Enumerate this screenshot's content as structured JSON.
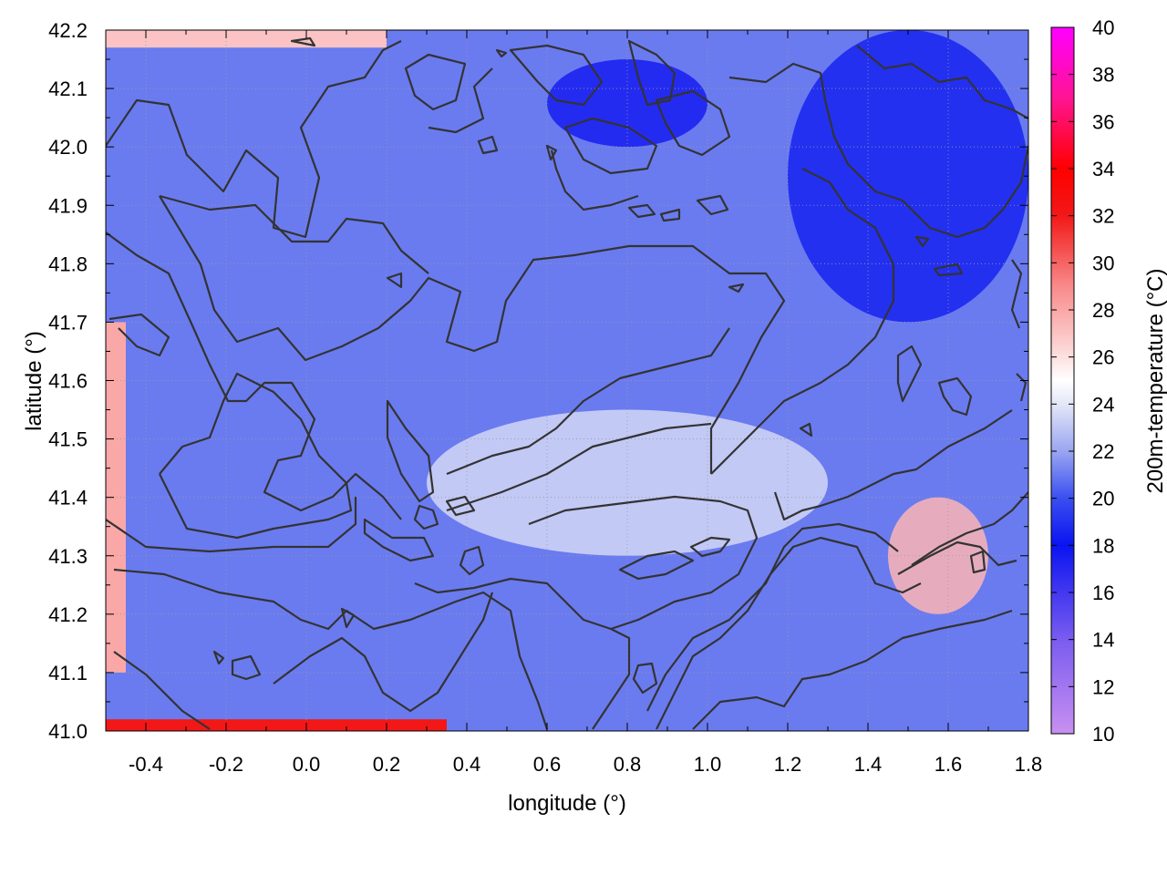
{
  "chart_data": {
    "type": "heatmap",
    "title": "",
    "xlabel": "longitude (°)",
    "ylabel": "latitude (°)",
    "colorbar_label": "200m-temperature (°C)",
    "xlim": [
      -0.5,
      1.8
    ],
    "ylim": [
      41.0,
      42.2
    ],
    "clim": [
      10,
      40
    ],
    "x_ticks": [
      -0.4,
      -0.2,
      0.0,
      0.2,
      0.4,
      0.6,
      0.8,
      1.0,
      1.2,
      1.4,
      1.6,
      1.8
    ],
    "x_tick_labels": [
      "-0.4",
      "-0.2",
      "0.0",
      "0.2",
      "0.4",
      "0.6",
      "0.8",
      "1.0",
      "1.2",
      "1.4",
      "1.6",
      "1.8"
    ],
    "y_ticks": [
      41.0,
      41.1,
      41.2,
      41.3,
      41.4,
      41.5,
      41.6,
      41.7,
      41.8,
      41.9,
      42.0,
      42.1,
      42.2
    ],
    "y_tick_labels": [
      "41.0",
      "41.1",
      "41.2",
      "41.3",
      "41.4",
      "41.5",
      "41.6",
      "41.7",
      "41.8",
      "41.9",
      "42.0",
      "42.1",
      "42.2"
    ],
    "cb_ticks": [
      10,
      12,
      14,
      16,
      18,
      20,
      22,
      24,
      26,
      28,
      30,
      32,
      34,
      36,
      38,
      40
    ],
    "cb_tick_labels": [
      "10",
      "12",
      "14",
      "16",
      "18",
      "20",
      "22",
      "24",
      "26",
      "28",
      "30",
      "32",
      "34",
      "36",
      "38",
      "40"
    ],
    "colormap_stops": [
      {
        "value": 10,
        "color": "#c890f0"
      },
      {
        "value": 14,
        "color": "#7a5cf0"
      },
      {
        "value": 18,
        "color": "#0a14f0"
      },
      {
        "value": 20,
        "color": "#3a4ff0"
      },
      {
        "value": 22,
        "color": "#9aa6f0"
      },
      {
        "value": 24,
        "color": "#e4e7f8"
      },
      {
        "value": 25,
        "color": "#ffffff"
      },
      {
        "value": 26,
        "color": "#fde0e0"
      },
      {
        "value": 29,
        "color": "#f88a8a"
      },
      {
        "value": 32,
        "color": "#f21818"
      },
      {
        "value": 34,
        "color": "#ff0000"
      },
      {
        "value": 37,
        "color": "#ff1493"
      },
      {
        "value": 40,
        "color": "#ff00ff"
      }
    ],
    "grid": true,
    "grid_style": "dotted",
    "contour_color": "#333333",
    "regions": [
      {
        "desc": "domain mean",
        "lon": [
          -0.5,
          1.8
        ],
        "lat": [
          41.0,
          42.2
        ],
        "temp": 21
      },
      {
        "desc": "northeast cold core",
        "lon": [
          1.2,
          1.8
        ],
        "lat": [
          41.7,
          42.2
        ],
        "temp": 18.5
      },
      {
        "desc": "north-central cold patch",
        "lon": [
          0.6,
          1.0
        ],
        "lat": [
          42.0,
          42.15
        ],
        "temp": 17.5
      },
      {
        "desc": "southern warm belt",
        "lon": [
          0.3,
          1.3
        ],
        "lat": [
          41.3,
          41.55
        ],
        "temp": 23.5
      },
      {
        "desc": "southeast warm anomaly",
        "lon": [
          1.45,
          1.7
        ],
        "lat": [
          41.2,
          41.4
        ],
        "temp": 27.5
      },
      {
        "desc": "southwest warm strip",
        "lon": [
          -0.5,
          -0.45
        ],
        "lat": [
          41.1,
          41.7
        ],
        "temp": 28
      },
      {
        "desc": "southern boundary warm strip",
        "lon": [
          -0.5,
          0.35
        ],
        "lat": [
          41.0,
          41.02
        ],
        "temp": 32
      },
      {
        "desc": "northwest boundary warm strip",
        "lon": [
          -0.5,
          0.2
        ],
        "lat": [
          42.17,
          42.2
        ],
        "temp": 27
      }
    ]
  }
}
